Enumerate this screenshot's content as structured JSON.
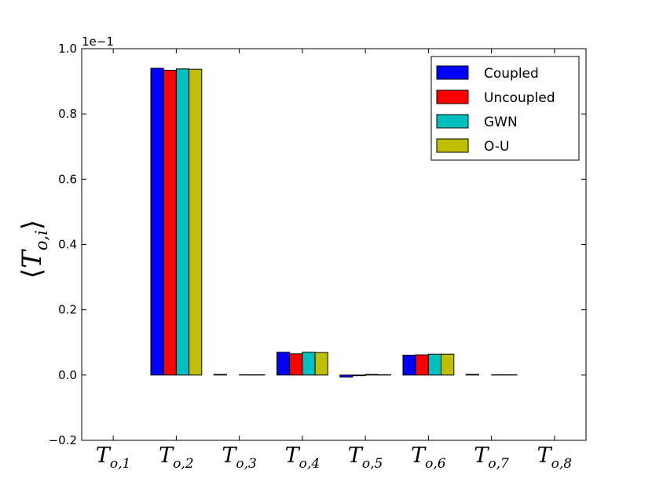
{
  "chart_data": {
    "type": "bar",
    "ylabel": "⟨T_{o,i}⟩",
    "ylabel_parts": {
      "open": "⟨",
      "base": "T",
      "sub": "o,i",
      "close": "⟩"
    },
    "offset_text": "1e−1",
    "ylim": [
      -0.2,
      1.0
    ],
    "yticks": [
      -0.2,
      0.0,
      0.2,
      0.4,
      0.6,
      0.8,
      1.0
    ],
    "ytick_labels": [
      "−0.2",
      "0.0",
      "0.2",
      "0.4",
      "0.6",
      "0.8",
      "1.0"
    ],
    "categories": [
      {
        "base": "T",
        "sub": "o,1"
      },
      {
        "base": "T",
        "sub": "o,2"
      },
      {
        "base": "T",
        "sub": "o,3"
      },
      {
        "base": "T",
        "sub": "o,4"
      },
      {
        "base": "T",
        "sub": "o,5"
      },
      {
        "base": "T",
        "sub": "o,6"
      },
      {
        "base": "T",
        "sub": "o,7"
      },
      {
        "base": "T",
        "sub": "o,8"
      }
    ],
    "series": [
      {
        "name": "Coupled",
        "color": "#0000ff",
        "values": [
          0.0,
          0.94,
          0.002,
          0.07,
          -0.006,
          0.061,
          0.002,
          0.0
        ]
      },
      {
        "name": "Uncoupled",
        "color": "#ff0000",
        "values": [
          0.0,
          0.934,
          0.0,
          0.065,
          -0.002,
          0.062,
          0.0,
          0.0
        ]
      },
      {
        "name": "GWN",
        "color": "#00bfbf",
        "values": [
          0.0,
          0.938,
          0.001,
          0.07,
          0.002,
          0.064,
          0.001,
          0.0
        ]
      },
      {
        "name": "O-U",
        "color": "#bfbf00",
        "values": [
          0.0,
          0.937,
          0.001,
          0.069,
          0.001,
          0.064,
          0.001,
          0.0
        ]
      }
    ],
    "grid": false,
    "legend_position": "top-right"
  }
}
